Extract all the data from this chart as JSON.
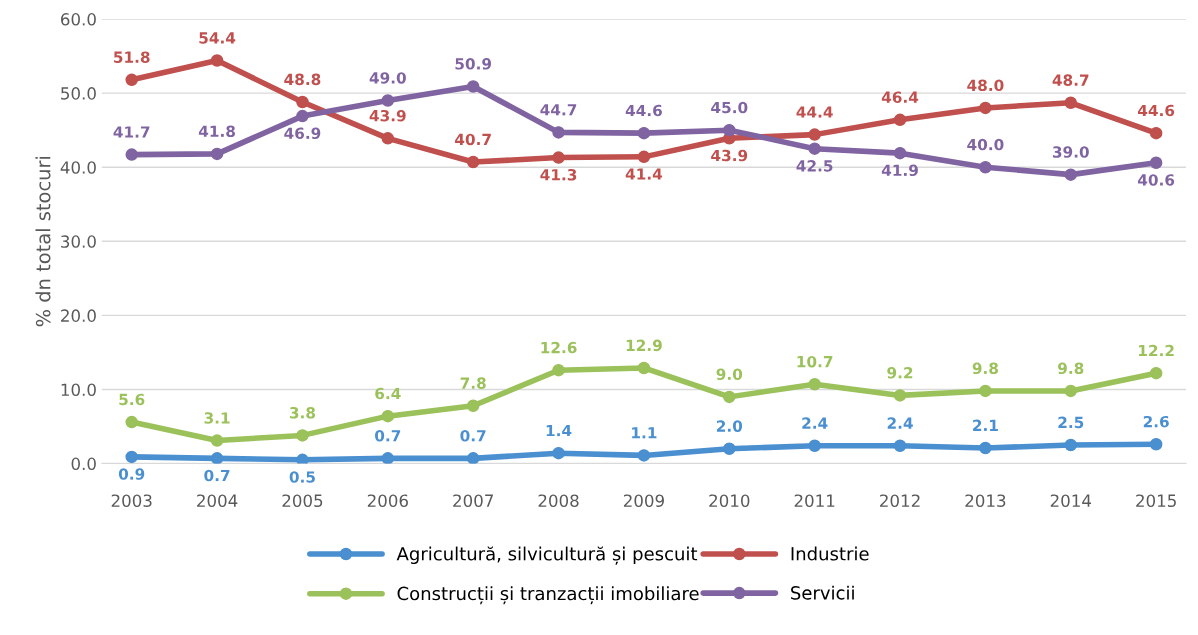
{
  "chart_data": {
    "type": "line",
    "ylabel": "% dn total stocuri",
    "categories": [
      "2003",
      "2004",
      "2005",
      "2006",
      "2007",
      "2008",
      "2009",
      "2010",
      "2011",
      "2012",
      "2013",
      "2014",
      "2015"
    ],
    "series": [
      {
        "name": "Agricultură, silvicultură și pescuit",
        "color": "#4a8fd0",
        "values": [
          0.9,
          0.7,
          0.5,
          0.7,
          0.7,
          1.4,
          1.1,
          2.0,
          2.4,
          2.4,
          2.1,
          2.5,
          2.6
        ],
        "value_labels": [
          "0.9",
          "0.7",
          "0.5",
          "0.7",
          "0.7",
          "1.4",
          "1.1",
          "2.0",
          "2.4",
          "2.4",
          "2.1",
          "2.5",
          "2.6"
        ]
      },
      {
        "name": "Industrie",
        "color": "#c0504d",
        "values": [
          51.8,
          54.4,
          48.8,
          43.9,
          40.7,
          41.3,
          41.4,
          43.9,
          44.4,
          46.4,
          48.0,
          48.7,
          44.6
        ],
        "value_labels": [
          "51.8",
          "54.4",
          "48.8",
          "43.9",
          "40.7",
          "41.3",
          "41.4",
          "43.9",
          "44.4",
          "46.4",
          "48.0",
          "48.7",
          "44.6"
        ]
      },
      {
        "name": "Construcții și tranzacții imobiliare",
        "color": "#9bc15a",
        "values": [
          5.6,
          3.1,
          3.8,
          6.4,
          7.8,
          12.6,
          12.9,
          9.0,
          10.7,
          9.2,
          9.8,
          9.8,
          12.2
        ],
        "value_labels": [
          "5.6",
          "3.1",
          "3.8",
          "6.4",
          "7.8",
          "12.6",
          "12.9",
          "9.0",
          "10.7",
          "9.2",
          "9.8",
          "9.8",
          "12.2"
        ]
      },
      {
        "name": "Servicii",
        "color": "#8064a2",
        "values": [
          41.7,
          41.8,
          46.9,
          49.0,
          50.9,
          44.7,
          44.6,
          45.0,
          42.5,
          41.9,
          40.0,
          39.0,
          40.6
        ],
        "value_labels": [
          "41.7",
          "41.8",
          "46.9",
          "49.0",
          "50.9",
          "44.7",
          "44.6",
          "45.0",
          "42.5",
          "41.9",
          "40.0",
          "39.0",
          "40.6"
        ]
      }
    ],
    "ylim": [
      0,
      60
    ],
    "yticks": [
      {
        "value": 0,
        "label": "0.0"
      },
      {
        "value": 10,
        "label": "10.0"
      },
      {
        "value": 20,
        "label": "20.0"
      },
      {
        "value": 30,
        "label": "30.0"
      },
      {
        "value": 40,
        "label": "40.0"
      },
      {
        "value": 50,
        "label": "50.0"
      },
      {
        "value": 60,
        "label": "60.0"
      }
    ],
    "grid": "y",
    "legend": "bottom",
    "marker": "circle",
    "line_style": "solid"
  }
}
